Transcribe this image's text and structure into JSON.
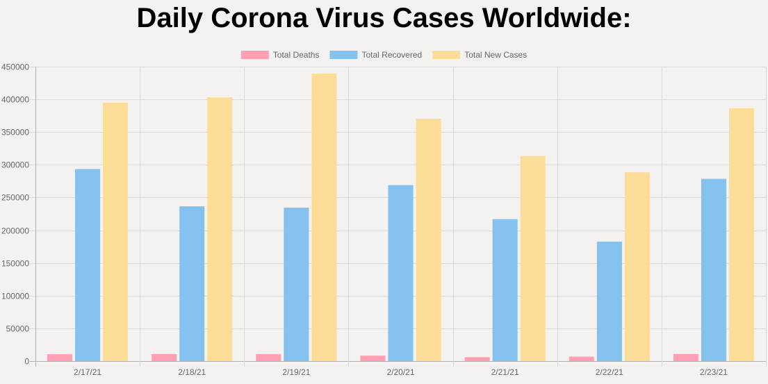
{
  "chart_data": {
    "type": "bar",
    "title": "Daily Corona Virus Cases Worldwide:",
    "categories": [
      "2/17/21",
      "2/18/21",
      "2/19/21",
      "2/20/21",
      "2/21/21",
      "2/22/21",
      "2/23/21"
    ],
    "series": [
      {
        "name": "Total Deaths",
        "color": "#ff9fb4",
        "border": "#ff6384",
        "values": [
          10500,
          10800,
          10600,
          8400,
          6000,
          6800,
          10800
        ]
      },
      {
        "name": "Total Recovered",
        "color": "#85c1ee",
        "border": "#36a2eb",
        "values": [
          293500,
          236500,
          234500,
          269000,
          217000,
          182500,
          278500
        ]
      },
      {
        "name": "Total New Cases",
        "color": "#fcdd98",
        "border": "#ffcd56",
        "values": [
          395000,
          403000,
          439500,
          370500,
          313500,
          288500,
          386500
        ]
      }
    ],
    "ylim": [
      0,
      450000
    ],
    "yticks": [
      0,
      50000,
      100000,
      150000,
      200000,
      250000,
      300000,
      350000,
      400000,
      450000
    ],
    "xlabel": "",
    "ylabel": "",
    "legend": "top"
  }
}
